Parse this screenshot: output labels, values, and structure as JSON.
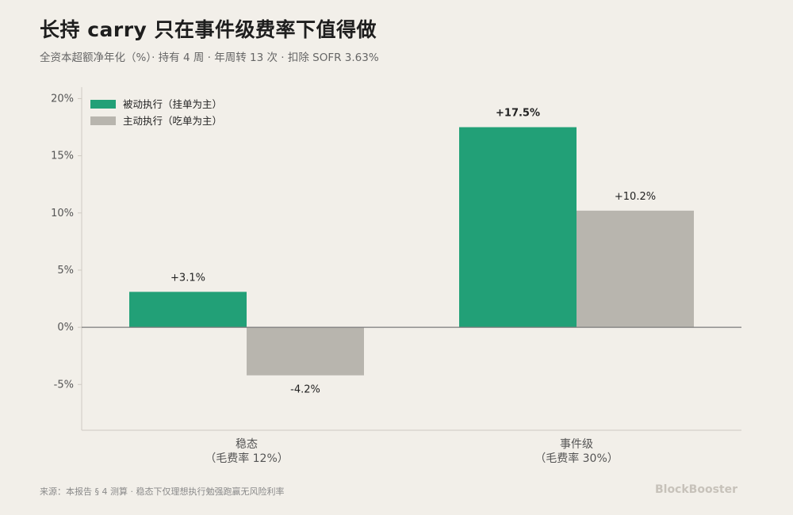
{
  "header": {
    "title": "长持 carry 只在事件级费率下值得做",
    "subtitle": "全资本超额净年化（%）· 持有 4 周 · 年周转 13 次 · 扣除 SOFR 3.63%"
  },
  "footer": {
    "source": "来源：本报告 § 4 测算 · 稳态下仅理想执行勉强跑赢无风险利率",
    "brand": "BlockBooster"
  },
  "chart_data": {
    "type": "bar",
    "categories": [
      {
        "line1": "稳态",
        "line2": "（毛费率 12%）"
      },
      {
        "line1": "事件级",
        "line2": "（毛费率 30%）"
      }
    ],
    "series": [
      {
        "name": "被动执行（挂单为主）",
        "color": "#22a077",
        "values": [
          3.1,
          17.5
        ],
        "labels": [
          "+3.1%",
          "+17.5%"
        ]
      },
      {
        "name": "主动执行（吃单为主）",
        "color": "#b8b5ae",
        "values": [
          -4.2,
          10.2
        ],
        "labels": [
          "-4.2%",
          "+10.2%"
        ]
      }
    ],
    "ylim": [
      -9,
      21
    ],
    "yticks": [
      -5,
      0,
      5,
      10,
      15,
      20
    ],
    "ytick_labels": [
      "-5%",
      "0%",
      "5%",
      "10%",
      "15%",
      "20%"
    ],
    "grid": false,
    "legend": "top-left",
    "xlabel": "",
    "ylabel": ""
  }
}
